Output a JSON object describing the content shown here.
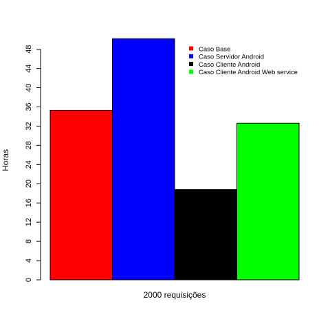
{
  "chart_data": {
    "type": "bar",
    "xlabel": "2000 requisições",
    "ylabel": "Horas",
    "ylim": [
      0,
      50
    ],
    "yticks": [
      0,
      4,
      8,
      12,
      16,
      20,
      24,
      28,
      32,
      36,
      40,
      44,
      48
    ],
    "legend_position": "top-right",
    "series": [
      {
        "name": "Caso Base",
        "value": 35.3,
        "color": "#ff0000"
      },
      {
        "name": "Caso Servidor Android",
        "value": 50.2,
        "color": "#0000ff"
      },
      {
        "name": "Caso Cliente Android",
        "value": 18.8,
        "color": "#000000"
      },
      {
        "name": "Caso Cliente Android Web service",
        "value": 32.6,
        "color": "#00ff00"
      }
    ]
  }
}
